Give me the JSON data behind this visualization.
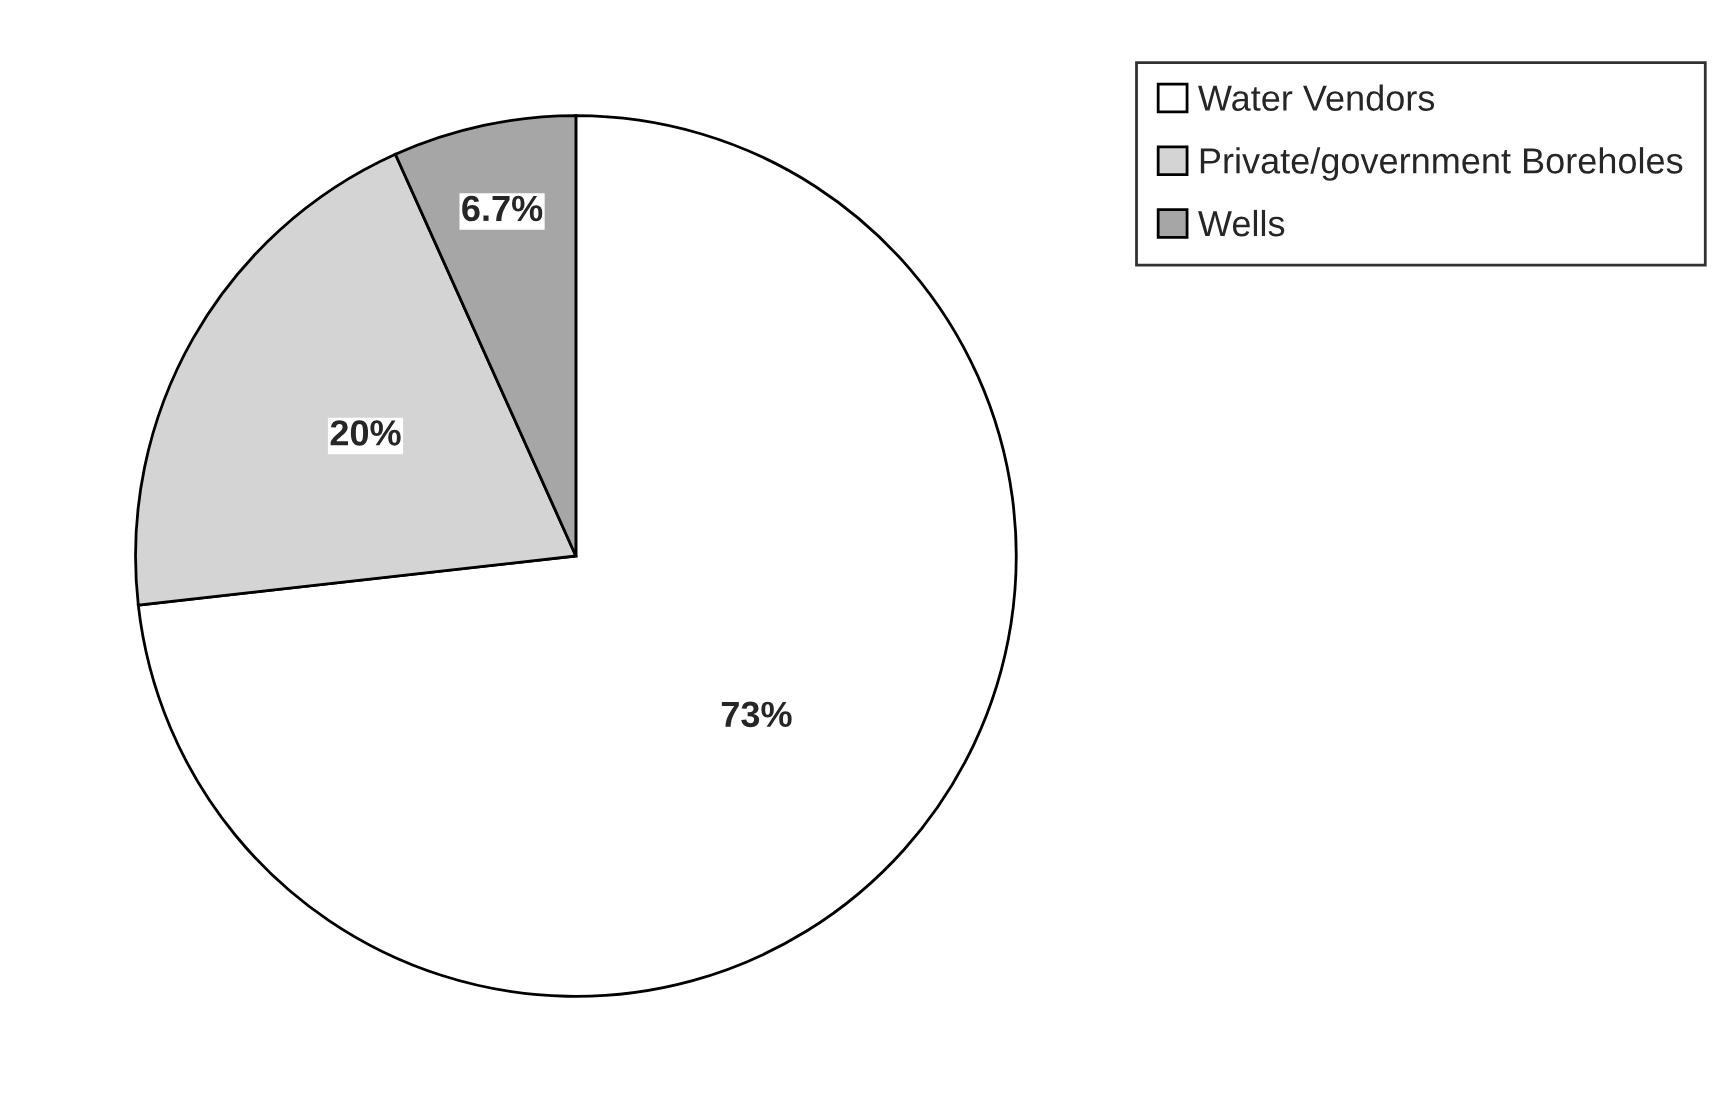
{
  "chart_data": {
    "type": "pie",
    "categories": [
      "Water Vendors",
      "Private/government Boreholes",
      "Wells"
    ],
    "values": [
      73,
      20,
      6.7
    ],
    "colors": [
      "#ffffff",
      "#d4d4d4",
      "#a6a6a6"
    ],
    "value_labels": [
      "73%",
      "20%",
      "6.7%"
    ],
    "legend": "top right"
  }
}
